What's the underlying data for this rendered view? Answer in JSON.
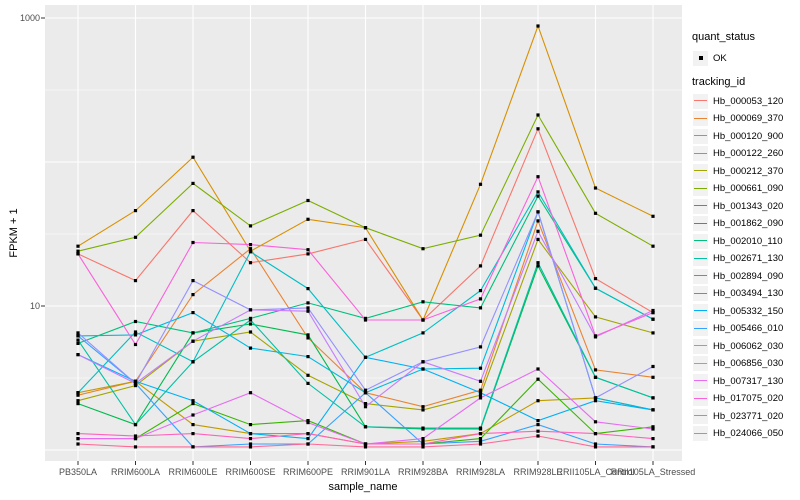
{
  "chart_data": {
    "type": "line",
    "title": "",
    "xlabel": "sample_name",
    "ylabel": "FPKM + 1",
    "y_scale": "log10",
    "ylim": [
      1,
      1000
    ],
    "y_tick_values": [
      1000,
      10
    ],
    "y_tick_labels": [
      "1000",
      "10"
    ],
    "grid": "white major gridlines at powers of 10 and at each category on gray panel",
    "legend_position": "right",
    "point_marker": {
      "shape": "small-black-square",
      "status_label": "OK"
    },
    "categories": [
      "PB350LA",
      "RRIM600LA",
      "RRIM600LE",
      "RRIM600SE",
      "RRIM600PE",
      "RRIM901LA",
      "RRIM928BA",
      "RRIM928LA",
      "RRIM928LE",
      "RRII105LA_Control",
      "RRII105LA_Stressed"
    ],
    "series": [
      {
        "name": "Hb_000053_120",
        "color": "#F8766D",
        "values": [
          23,
          15,
          46,
          20,
          23,
          29,
          8,
          19,
          170,
          15.5,
          9
        ]
      },
      {
        "name": "Hb_000069_370",
        "color": "#EA8331",
        "values": [
          2.4,
          3,
          12,
          25,
          6,
          2.5,
          2,
          2.6,
          39,
          3.6,
          3.2
        ]
      },
      {
        "name": "Hb_000120_900",
        "color": "#D89000",
        "values": [
          26,
          46,
          108,
          24,
          40,
          35,
          8,
          70,
          880,
          66,
          42
        ]
      },
      {
        "name": "Hb_000122_260",
        "color": "#C09B00",
        "values": [
          2.5,
          3,
          1.5,
          1.3,
          1.3,
          1.1,
          1.15,
          1.3,
          2.2,
          2.3,
          1.9
        ]
      },
      {
        "name": "Hb_000212_370",
        "color": "#A3A500",
        "values": [
          2.2,
          2.8,
          5.7,
          6.6,
          3.3,
          2.1,
          1.9,
          2.4,
          29,
          8.4,
          6.5
        ]
      },
      {
        "name": "Hb_000661_090",
        "color": "#7CAE00",
        "values": [
          24,
          30,
          71,
          36,
          54,
          35,
          25,
          31,
          212,
          44,
          26
        ]
      },
      {
        "name": "Hb_001343_020",
        "color": "#39B600",
        "values": [
          1.2,
          1.2,
          2.1,
          1.5,
          1.6,
          1.1,
          1.1,
          1.2,
          3.1,
          1.3,
          1.45
        ]
      },
      {
        "name": "Hb_001862_090",
        "color": "#00BB4E",
        "values": [
          2.1,
          1.5,
          6.5,
          7.5,
          6.3,
          1.45,
          1.4,
          1.4,
          19,
          3.2,
          2.3
        ]
      },
      {
        "name": "Hb_002010_110",
        "color": "#00BF7D",
        "values": [
          5.5,
          7.8,
          6.5,
          8.2,
          10.5,
          8.2,
          10.7,
          9.7,
          58,
          13.3,
          8.1
        ]
      },
      {
        "name": "Hb_002671_130",
        "color": "#00C1A3",
        "values": [
          5.8,
          1.5,
          4.1,
          8,
          2.9,
          1.45,
          1.42,
          1.42,
          20,
          3.2,
          2.3
        ]
      },
      {
        "name": "Hb_002894_090",
        "color": "#00BFC4",
        "values": [
          2.5,
          6.6,
          4.1,
          23.8,
          13.2,
          4.4,
          6.5,
          12.8,
          62,
          13.3,
          8.1
        ]
      },
      {
        "name": "Hb_003494_130",
        "color": "#00BAE0",
        "values": [
          6.2,
          6.3,
          9,
          5.1,
          4.45,
          2.5,
          3.65,
          3.7,
          45,
          2.3,
          1.9
        ]
      },
      {
        "name": "Hb_005332_150",
        "color": "#00B0F6",
        "values": [
          4.6,
          3,
          2.2,
          1.3,
          1.2,
          4.4,
          3.65,
          2.5,
          1.6,
          2.2,
          1.9
        ]
      },
      {
        "name": "Hb_005466_010",
        "color": "#35A2FF",
        "values": [
          6.2,
          2.9,
          1.05,
          1.1,
          1.1,
          2.5,
          1.1,
          1.15,
          1.5,
          1.1,
          1.05
        ]
      },
      {
        "name": "Hb_006062_030",
        "color": "#9590FF",
        "values": [
          6.5,
          2.9,
          15,
          9.4,
          9.7,
          2.6,
          4.1,
          5.2,
          45,
          2.3,
          3.8
        ]
      },
      {
        "name": "Hb_006856_030",
        "color": "#C77CFF",
        "values": [
          4.6,
          2.9,
          5.7,
          9.4,
          9.2,
          2,
          4.1,
          3,
          33,
          6.1,
          9.3
        ]
      },
      {
        "name": "Hb_007317_130",
        "color": "#E76BF3",
        "values": [
          1.2,
          1.2,
          1.75,
          2.5,
          1.55,
          1.1,
          1.2,
          2.3,
          3.65,
          1.57,
          1.4
        ]
      },
      {
        "name": "Hb_017075_020",
        "color": "#FA62DB",
        "values": [
          23,
          5.4,
          27.6,
          26.7,
          24.6,
          8,
          8,
          11.2,
          79,
          6.2,
          9
        ]
      },
      {
        "name": "Hb_023771_020",
        "color": "#FF62BC",
        "values": [
          1.3,
          1.25,
          1.3,
          1.2,
          1.3,
          1.1,
          1.1,
          1.3,
          1.35,
          1.3,
          1.2
        ]
      },
      {
        "name": "Hb_024066_050",
        "color": "#FF6A98",
        "values": [
          1.1,
          1.05,
          1.05,
          1.05,
          1.1,
          1.05,
          1.05,
          1.1,
          1.25,
          1.05,
          1.05
        ]
      }
    ]
  },
  "legend": {
    "quant_status": {
      "title": "quant_status",
      "items": [
        {
          "label": "OK"
        }
      ]
    },
    "tracking": {
      "title": "tracking_id"
    }
  },
  "panel": {
    "bg": "#EBEBEB",
    "grid_color": "#FFFFFF",
    "tick_label_color": "#4D4D4D",
    "point_color": "#000000"
  }
}
